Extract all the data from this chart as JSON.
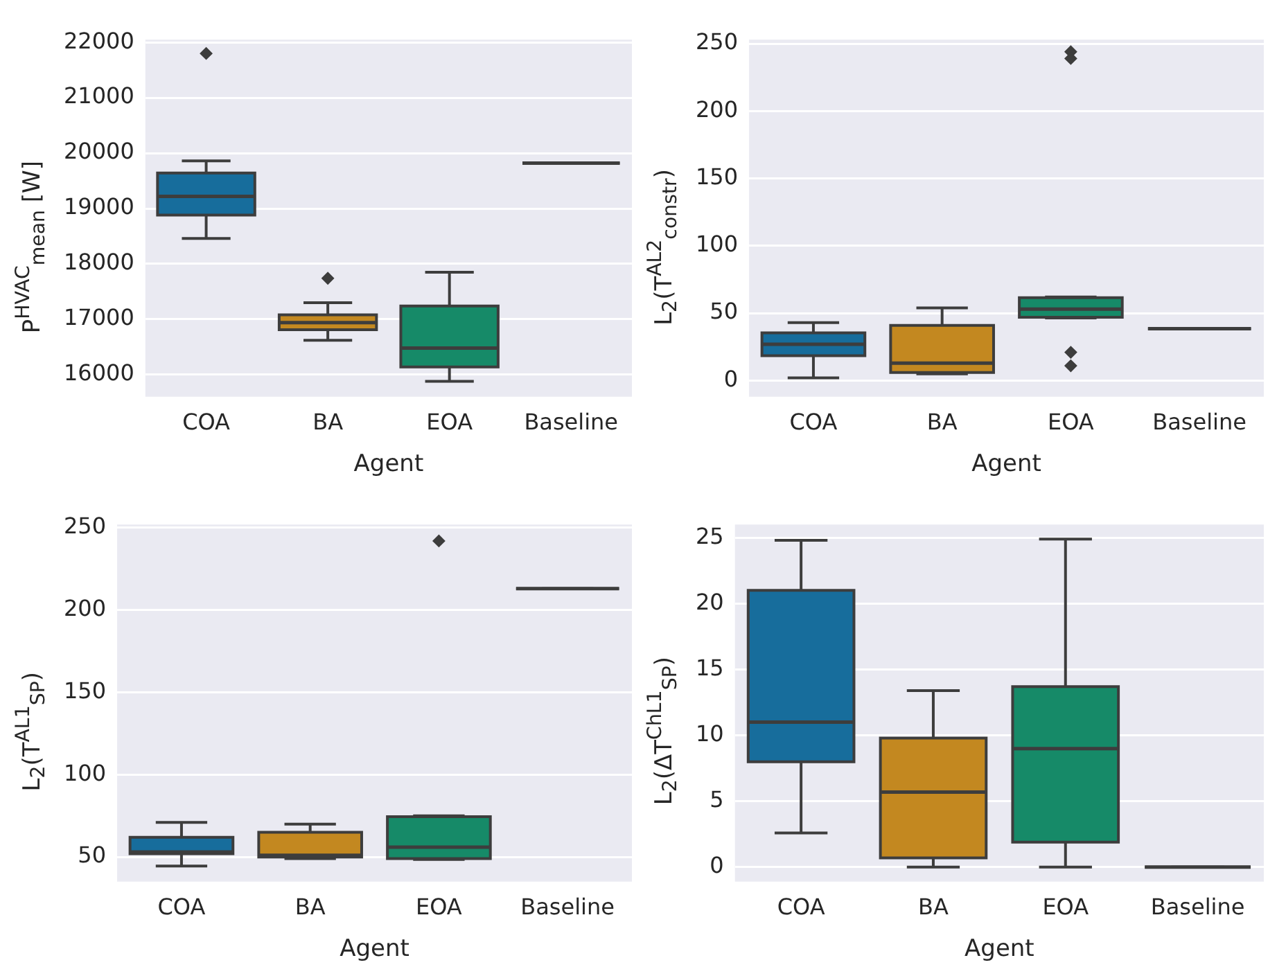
{
  "chart_data": [
    {
      "type": "box",
      "xlabel": "Agent",
      "ylabel": "P$^{HVAC}$$_{mean}$ [W]",
      "categories": [
        "COA",
        "BA",
        "EOA",
        "Baseline"
      ],
      "colors": [
        "#176d9c",
        "#c38820",
        "#168a68",
        "#3d3d3d"
      ],
      "marker": "diamond",
      "grid": "y",
      "ylim": [
        15600,
        22050
      ],
      "yticks": [
        16000,
        17000,
        18000,
        19000,
        20000,
        21000,
        22000
      ],
      "boxes": [
        {
          "low": 18460,
          "q1": 18880,
          "median": 19220,
          "q3": 19640,
          "high": 19860,
          "outliers": [
            21800
          ]
        },
        {
          "low": 16620,
          "q1": 16810,
          "median": 16940,
          "q3": 17080,
          "high": 17300,
          "outliers": [
            17740
          ]
        },
        {
          "low": 15880,
          "q1": 16140,
          "median": 16480,
          "q3": 17240,
          "high": 17850
        },
        {
          "low": 19820,
          "q1": 19820,
          "median": 19820,
          "q3": 19820,
          "high": 19820
        }
      ]
    },
    {
      "type": "box",
      "xlabel": "Agent",
      "ylabel": "L$_{2}$(T$^{AL2}$$_{constr}$)",
      "categories": [
        "COA",
        "BA",
        "EOA",
        "Baseline"
      ],
      "colors": [
        "#176d9c",
        "#c38820",
        "#168a68",
        "#3d3d3d"
      ],
      "marker": "diamond",
      "grid": "y",
      "ylim": [
        -12,
        253
      ],
      "yticks": [
        0,
        50,
        100,
        150,
        200,
        250
      ],
      "boxes": [
        {
          "low": 2,
          "q1": 18.5,
          "median": 27,
          "q3": 35.5,
          "high": 43
        },
        {
          "low": 5,
          "q1": 6,
          "median": 13,
          "q3": 41,
          "high": 54
        },
        {
          "low": 46.5,
          "q1": 47,
          "median": 53,
          "q3": 61.5,
          "high": 62,
          "outliers": [
            244,
            239,
            21,
            11
          ]
        },
        {
          "low": 38.5,
          "q1": 38.5,
          "median": 38.5,
          "q3": 38.5,
          "high": 38.5
        }
      ]
    },
    {
      "type": "box",
      "xlabel": "Agent",
      "ylabel": "L$_{2}$(T$^{AL1}$$_{SP}$)",
      "categories": [
        "COA",
        "BA",
        "EOA",
        "Baseline"
      ],
      "colors": [
        "#176d9c",
        "#c38820",
        "#168a68",
        "#3d3d3d"
      ],
      "marker": "diamond",
      "grid": "y",
      "ylim": [
        35,
        252
      ],
      "yticks": [
        50,
        100,
        150,
        200,
        250
      ],
      "boxes": [
        {
          "low": 44.5,
          "q1": 52,
          "median": 53,
          "q3": 62,
          "high": 71
        },
        {
          "low": 49,
          "q1": 50,
          "median": 51,
          "q3": 65,
          "high": 70
        },
        {
          "low": 48.5,
          "q1": 49,
          "median": 56,
          "q3": 74.5,
          "high": 75,
          "outliers": [
            242
          ]
        },
        {
          "low": 213,
          "q1": 213,
          "median": 213,
          "q3": 213,
          "high": 213
        }
      ]
    },
    {
      "type": "box",
      "xlabel": "Agent",
      "ylabel": "L$_{2}$(ΔT$^{ChL1}$$_{SP}$)",
      "categories": [
        "COA",
        "BA",
        "EOA",
        "Baseline"
      ],
      "colors": [
        "#176d9c",
        "#c38820",
        "#168a68",
        "#3d3d3d"
      ],
      "marker": "diamond",
      "grid": "y",
      "ylim": [
        -1.1,
        26
      ],
      "yticks": [
        0,
        5,
        10,
        15,
        20,
        25
      ],
      "boxes": [
        {
          "low": 2.6,
          "q1": 8,
          "median": 11,
          "q3": 21,
          "high": 24.8
        },
        {
          "low": 0,
          "q1": 0.7,
          "median": 5.7,
          "q3": 9.8,
          "high": 13.4
        },
        {
          "low": 0,
          "q1": 1.9,
          "median": 9,
          "q3": 13.7,
          "high": 24.9
        },
        {
          "low": 0,
          "q1": 0,
          "median": 0,
          "q3": 0,
          "high": 0
        }
      ]
    }
  ]
}
